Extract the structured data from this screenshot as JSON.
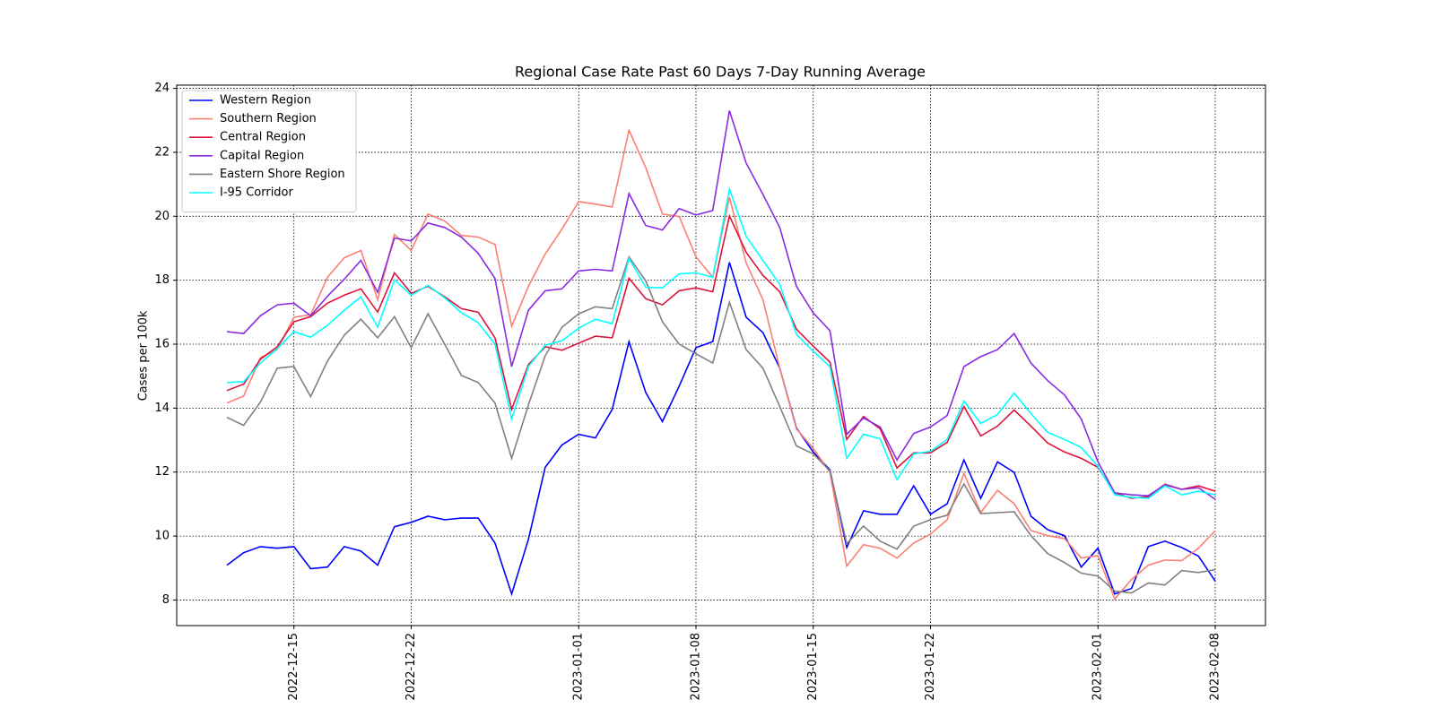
{
  "chart_data": {
    "type": "line",
    "title": "Regional Case Rate  Past 60 Days 7-Day Running Average",
    "y_label": "Cases per 100k",
    "x": [
      "2022-12-11",
      "2022-12-12",
      "2022-12-13",
      "2022-12-14",
      "2022-12-15",
      "2022-12-16",
      "2022-12-17",
      "2022-12-18",
      "2022-12-19",
      "2022-12-20",
      "2022-12-21",
      "2022-12-22",
      "2022-12-23",
      "2022-12-24",
      "2022-12-25",
      "2022-12-26",
      "2022-12-27",
      "2022-12-28",
      "2022-12-29",
      "2022-12-30",
      "2022-12-31",
      "2023-01-01",
      "2023-01-02",
      "2023-01-03",
      "2023-01-04",
      "2023-01-05",
      "2023-01-06",
      "2023-01-07",
      "2023-01-08",
      "2023-01-09",
      "2023-01-10",
      "2023-01-11",
      "2023-01-12",
      "2023-01-13",
      "2023-01-14",
      "2023-01-15",
      "2023-01-16",
      "2023-01-17",
      "2023-01-18",
      "2023-01-19",
      "2023-01-20",
      "2023-01-21",
      "2023-01-22",
      "2023-01-23",
      "2023-01-24",
      "2023-01-25",
      "2023-01-26",
      "2023-01-27",
      "2023-01-28",
      "2023-01-29",
      "2023-01-30",
      "2023-01-31",
      "2023-02-01",
      "2023-02-02",
      "2023-02-03",
      "2023-02-04",
      "2023-02-05",
      "2023-02-06",
      "2023-02-07",
      "2023-02-08"
    ],
    "series": [
      {
        "name": "Western Region",
        "color": "#0000ff",
        "values": [
          9.09,
          9.48,
          9.67,
          9.62,
          9.67,
          8.98,
          9.03,
          9.67,
          9.53,
          9.09,
          10.29,
          10.43,
          10.62,
          10.51,
          10.56,
          10.56,
          9.78,
          8.19,
          9.9,
          12.15,
          12.85,
          13.18,
          13.07,
          13.96,
          16.08,
          14.49,
          13.58,
          14.69,
          15.89,
          16.08,
          18.56,
          16.84,
          16.36,
          15.25,
          13.38,
          12.63,
          12.07,
          9.64,
          10.79,
          10.68,
          10.68,
          11.57,
          10.68,
          11.01,
          12.38,
          11.18,
          12.32,
          11.99,
          10.62,
          10.2,
          10.01,
          9.03,
          9.62,
          8.19,
          8.36,
          9.67,
          9.84,
          9.64,
          9.37,
          8.59
        ]
      },
      {
        "name": "Southern Region",
        "color": "#fa8072",
        "values": [
          14.16,
          14.38,
          15.58,
          15.83,
          16.84,
          16.92,
          18.09,
          18.7,
          18.93,
          17.39,
          19.43,
          18.93,
          20.07,
          19.85,
          19.4,
          19.35,
          19.12,
          16.56,
          17.81,
          18.82,
          19.6,
          20.46,
          20.38,
          20.29,
          22.69,
          21.52,
          20.07,
          19.99,
          18.73,
          18.09,
          20.6,
          18.54,
          17.39,
          15.25,
          13.35,
          12.74,
          11.99,
          9.06,
          9.73,
          9.62,
          9.31,
          9.78,
          10.06,
          10.51,
          11.96,
          10.73,
          11.43,
          11.01,
          10.17,
          10.01,
          9.92,
          9.31,
          9.39,
          8.03,
          8.64,
          9.09,
          9.25,
          9.23,
          9.62,
          10.17
        ]
      },
      {
        "name": "Central Region",
        "color": "#dc143c",
        "values": [
          14.55,
          14.75,
          15.53,
          15.92,
          16.7,
          16.86,
          17.28,
          17.53,
          17.73,
          17.0,
          18.23,
          17.59,
          17.81,
          17.48,
          17.11,
          17.0,
          16.2,
          13.96,
          15.36,
          15.92,
          15.81,
          16.03,
          16.25,
          16.2,
          18.06,
          17.42,
          17.23,
          17.67,
          17.76,
          17.64,
          20.01,
          18.87,
          18.15,
          17.64,
          16.47,
          15.94,
          15.44,
          13.02,
          13.74,
          13.35,
          12.13,
          12.6,
          12.6,
          12.93,
          14.05,
          13.13,
          13.44,
          13.94,
          13.44,
          12.91,
          12.63,
          12.43,
          12.15,
          11.35,
          11.18,
          11.23,
          11.62,
          11.46,
          11.57,
          11.4
        ]
      },
      {
        "name": "Capital Region",
        "color": "#8a2be2",
        "values": [
          16.39,
          16.33,
          16.89,
          17.23,
          17.28,
          16.89,
          17.5,
          18.03,
          18.62,
          17.62,
          19.32,
          19.23,
          19.79,
          19.65,
          19.35,
          18.84,
          18.06,
          15.3,
          17.06,
          17.67,
          17.73,
          18.29,
          18.34,
          18.29,
          20.71,
          19.71,
          19.57,
          20.24,
          20.04,
          20.18,
          23.3,
          21.66,
          20.68,
          19.65,
          17.81,
          16.98,
          16.42,
          13.18,
          13.69,
          13.41,
          12.38,
          13.21,
          13.41,
          13.77,
          15.3,
          15.61,
          15.83,
          16.33,
          15.41,
          14.86,
          14.41,
          13.66,
          12.32,
          11.35,
          11.29,
          11.26,
          11.6,
          11.46,
          11.51,
          11.15
        ]
      },
      {
        "name": "Eastern Shore Region",
        "color": "#808080",
        "values": [
          13.71,
          13.46,
          14.19,
          15.25,
          15.3,
          14.36,
          15.47,
          16.28,
          16.78,
          16.2,
          16.86,
          15.89,
          16.95,
          16.0,
          15.02,
          14.8,
          14.16,
          12.43,
          14.1,
          15.64,
          16.53,
          16.95,
          17.17,
          17.11,
          18.73,
          17.98,
          16.7,
          16.0,
          15.7,
          15.41,
          17.31,
          15.83,
          15.25,
          14.05,
          12.82,
          12.57,
          12.04,
          9.76,
          10.31,
          9.84,
          9.59,
          10.31,
          10.51,
          10.65,
          11.63,
          10.7,
          10.73,
          10.76,
          10.01,
          9.45,
          9.17,
          8.84,
          8.75,
          8.28,
          8.22,
          8.53,
          8.47,
          8.92,
          8.86,
          8.95
        ]
      },
      {
        "name": "I-95 Corridor",
        "color": "#00ffff",
        "values": [
          14.8,
          14.83,
          15.41,
          15.86,
          16.39,
          16.22,
          16.59,
          17.06,
          17.48,
          16.53,
          18.01,
          17.53,
          17.84,
          17.45,
          16.98,
          16.67,
          16.0,
          13.66,
          15.3,
          15.97,
          16.11,
          16.5,
          16.78,
          16.64,
          18.68,
          17.78,
          17.76,
          18.2,
          18.23,
          18.09,
          20.85,
          19.37,
          18.62,
          17.87,
          16.31,
          15.78,
          15.3,
          12.43,
          13.18,
          13.04,
          11.76,
          12.57,
          12.65,
          13.02,
          14.22,
          13.52,
          13.8,
          14.47,
          13.83,
          13.24,
          13.02,
          12.77,
          12.18,
          11.29,
          11.21,
          11.18,
          11.57,
          11.29,
          11.4,
          11.29
        ]
      }
    ],
    "xlim": [
      "2022-12-08",
      "2023-02-11"
    ],
    "xticks": [
      "2022-12-15",
      "2022-12-22",
      "2023-01-01",
      "2023-01-08",
      "2023-01-15",
      "2023-01-22",
      "2023-02-01",
      "2023-02-08"
    ],
    "ylim": [
      7.2,
      24.1
    ],
    "yticks": [
      8,
      10,
      12,
      14,
      16,
      18,
      20,
      22,
      24
    ],
    "grid": true,
    "legend": "upper left"
  }
}
